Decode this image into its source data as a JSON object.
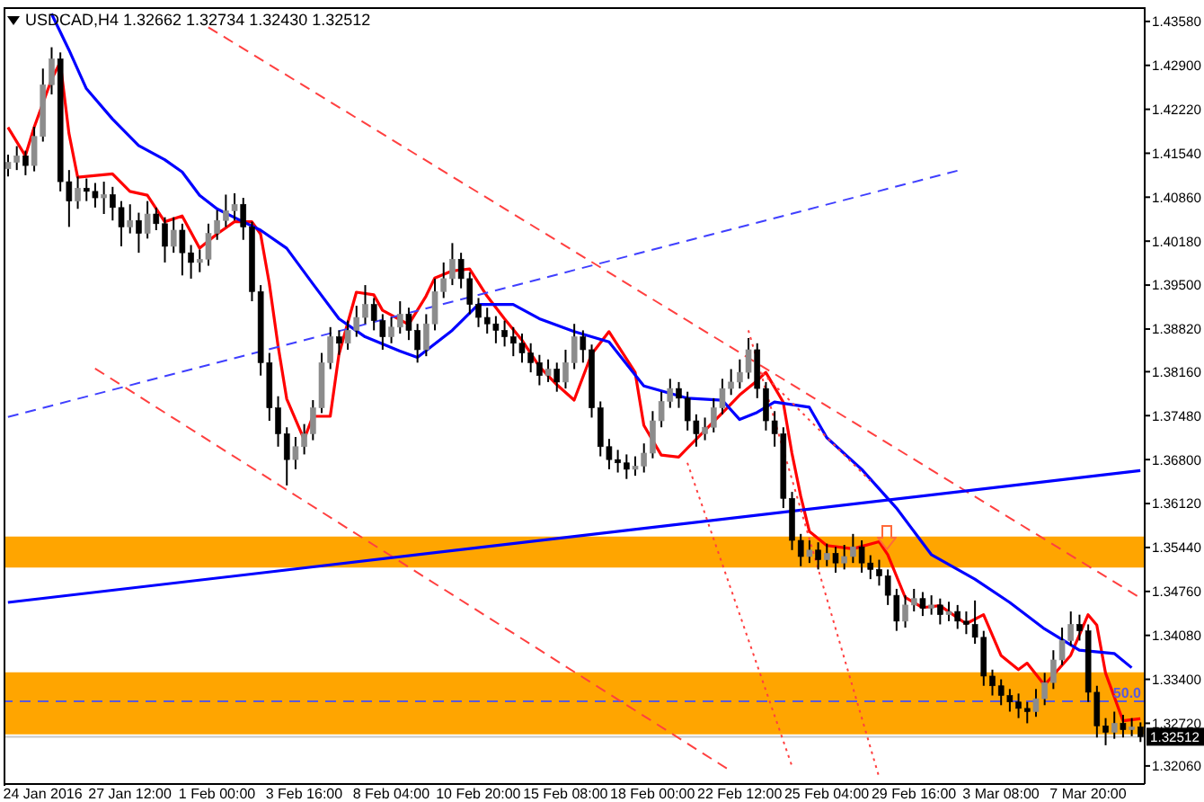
{
  "chart_data": {
    "type": "candlestick",
    "title": "USDCAD,H4 1.32662 1.32734 1.32430 1.32512",
    "categories": [
      null,
      null,
      null,
      null,
      "24 Jan 2016",
      null,
      null,
      null,
      null,
      null,
      null,
      null,
      null,
      null,
      "27 Jan 12:00",
      null,
      null,
      null,
      null,
      null,
      null,
      null,
      null,
      null,
      "1 Feb 00:00",
      null,
      null,
      null,
      null,
      null,
      null,
      null,
      null,
      null,
      "3 Feb 16:00",
      null,
      null,
      null,
      null,
      null,
      null,
      null,
      null,
      null,
      "8 Feb 04:00",
      null,
      null,
      null,
      null,
      null,
      null,
      null,
      null,
      null,
      "10 Feb 20:00",
      null,
      null,
      null,
      null,
      null,
      null,
      null,
      null,
      null,
      "15 Feb 08:00",
      null,
      null,
      null,
      null,
      null,
      null,
      null,
      null,
      null,
      "18 Feb 00:00",
      null,
      null,
      null,
      null,
      null,
      null,
      null,
      null,
      null,
      "22 Feb 12:00",
      null,
      null,
      null,
      null,
      null,
      null,
      null,
      null,
      null,
      "25 Feb 04:00",
      null,
      null,
      null,
      null,
      null,
      null,
      null,
      null,
      null,
      "29 Feb 16:00",
      null,
      null,
      null,
      null,
      null,
      null,
      null,
      null,
      null,
      "3 Mar 08:00",
      null,
      null,
      null,
      null,
      null,
      null,
      null,
      null,
      null,
      "7 Mar 20:00",
      null,
      null,
      null,
      null,
      null,
      null
    ],
    "ohlc": [
      [
        1.413,
        1.4152,
        1.4118,
        1.414
      ],
      [
        1.414,
        1.4165,
        1.4128,
        1.415
      ],
      [
        1.415,
        1.4158,
        1.412,
        1.4135
      ],
      [
        1.4135,
        1.4195,
        1.4126,
        1.418
      ],
      [
        1.418,
        1.4285,
        1.4172,
        1.426
      ],
      [
        1.426,
        1.4318,
        1.4245,
        1.43
      ],
      [
        1.43,
        1.431,
        1.4095,
        1.411
      ],
      [
        1.411,
        1.4128,
        1.404,
        1.408
      ],
      [
        1.408,
        1.4118,
        1.4068,
        1.41
      ],
      [
        1.41,
        1.4115,
        1.408,
        1.4095
      ],
      [
        1.4095,
        1.4108,
        1.407,
        1.4085
      ],
      [
        1.4085,
        1.411,
        1.406,
        1.409
      ],
      [
        1.409,
        1.4102,
        1.405,
        1.407
      ],
      [
        1.407,
        1.408,
        1.401,
        1.404
      ],
      [
        1.404,
        1.4075,
        1.403,
        1.405
      ],
      [
        1.405,
        1.4062,
        1.4,
        1.403
      ],
      [
        1.403,
        1.408,
        1.4022,
        1.406
      ],
      [
        1.406,
        1.407,
        1.4035,
        1.4045
      ],
      [
        1.4045,
        1.4055,
        1.3985,
        1.401
      ],
      [
        1.401,
        1.4055,
        1.4,
        1.4035
      ],
      [
        1.4035,
        1.4045,
        1.3965,
        1.4
      ],
      [
        1.4,
        1.4012,
        1.396,
        1.3985
      ],
      [
        1.3985,
        1.4005,
        1.397,
        1.399
      ],
      [
        1.399,
        1.4045,
        1.398,
        1.403
      ],
      [
        1.403,
        1.4066,
        1.402,
        1.405
      ],
      [
        1.405,
        1.409,
        1.404,
        1.4065
      ],
      [
        1.4065,
        1.4092,
        1.405,
        1.4075
      ],
      [
        1.4075,
        1.4085,
        1.402,
        1.404
      ],
      [
        1.404,
        1.4048,
        1.3925,
        1.394
      ],
      [
        1.394,
        1.395,
        1.381,
        1.383
      ],
      [
        1.383,
        1.3845,
        1.374,
        1.376
      ],
      [
        1.376,
        1.3778,
        1.37,
        1.372
      ],
      [
        1.372,
        1.373,
        1.364,
        1.368
      ],
      [
        1.368,
        1.3715,
        1.3665,
        1.37
      ],
      [
        1.37,
        1.3735,
        1.3688,
        1.372
      ],
      [
        1.372,
        1.3772,
        1.371,
        1.376
      ],
      [
        1.376,
        1.3845,
        1.3752,
        1.383
      ],
      [
        1.383,
        1.3885,
        1.382,
        1.387
      ],
      [
        1.387,
        1.388,
        1.3842,
        1.386
      ],
      [
        1.386,
        1.3895,
        1.385,
        1.388
      ],
      [
        1.388,
        1.3918,
        1.387,
        1.39
      ],
      [
        1.39,
        1.395,
        1.389,
        1.392
      ],
      [
        1.392,
        1.393,
        1.388,
        1.3895
      ],
      [
        1.3895,
        1.3905,
        1.385,
        1.387
      ],
      [
        1.387,
        1.39,
        1.386,
        1.3885
      ],
      [
        1.3885,
        1.3925,
        1.3875,
        1.3905
      ],
      [
        1.3905,
        1.3915,
        1.3865,
        1.388
      ],
      [
        1.388,
        1.389,
        1.383,
        1.385
      ],
      [
        1.385,
        1.3905,
        1.384,
        1.389
      ],
      [
        1.389,
        1.396,
        1.388,
        1.394
      ],
      [
        1.394,
        1.3985,
        1.393,
        1.396
      ],
      [
        1.396,
        1.4015,
        1.395,
        1.399
      ],
      [
        1.399,
        1.4,
        1.3945,
        1.396
      ],
      [
        1.396,
        1.397,
        1.3905,
        1.392
      ],
      [
        1.392,
        1.393,
        1.3885,
        1.39
      ],
      [
        1.39,
        1.3915,
        1.3875,
        1.389
      ],
      [
        1.389,
        1.3902,
        1.386,
        1.388
      ],
      [
        1.388,
        1.3895,
        1.3855,
        1.387
      ],
      [
        1.387,
        1.3885,
        1.384,
        1.386
      ],
      [
        1.386,
        1.3875,
        1.383,
        1.3845
      ],
      [
        1.3845,
        1.386,
        1.3815,
        1.383
      ],
      [
        1.383,
        1.3842,
        1.3795,
        1.381
      ],
      [
        1.381,
        1.3835,
        1.38,
        1.382
      ],
      [
        1.382,
        1.383,
        1.3785,
        1.38
      ],
      [
        1.38,
        1.385,
        1.379,
        1.383
      ],
      [
        1.383,
        1.389,
        1.382,
        1.387
      ],
      [
        1.387,
        1.388,
        1.383,
        1.385
      ],
      [
        1.385,
        1.3858,
        1.3745,
        1.376
      ],
      [
        1.376,
        1.377,
        1.3685,
        1.37
      ],
      [
        1.37,
        1.3712,
        1.3665,
        1.368
      ],
      [
        1.368,
        1.3695,
        1.366,
        1.3675
      ],
      [
        1.3675,
        1.3688,
        1.365,
        1.3665
      ],
      [
        1.3665,
        1.3685,
        1.3655,
        1.367
      ],
      [
        1.367,
        1.3705,
        1.366,
        1.369
      ],
      [
        1.369,
        1.3755,
        1.3682,
        1.374
      ],
      [
        1.374,
        1.3785,
        1.373,
        1.377
      ],
      [
        1.377,
        1.3805,
        1.376,
        1.379
      ],
      [
        1.379,
        1.38,
        1.376,
        1.3775
      ],
      [
        1.3775,
        1.3785,
        1.3725,
        1.374
      ],
      [
        1.374,
        1.375,
        1.37,
        1.372
      ],
      [
        1.372,
        1.3745,
        1.371,
        1.373
      ],
      [
        1.373,
        1.3775,
        1.3722,
        1.376
      ],
      [
        1.376,
        1.3805,
        1.375,
        1.379
      ],
      [
        1.379,
        1.382,
        1.378,
        1.38
      ],
      [
        1.38,
        1.3835,
        1.379,
        1.3815
      ],
      [
        1.3815,
        1.3868,
        1.3805,
        1.385
      ],
      [
        1.385,
        1.386,
        1.3775,
        1.379
      ],
      [
        1.379,
        1.38,
        1.3725,
        1.374
      ],
      [
        1.374,
        1.3755,
        1.37,
        1.372
      ],
      [
        1.372,
        1.373,
        1.3605,
        1.362
      ],
      [
        1.362,
        1.363,
        1.354,
        1.3555
      ],
      [
        1.3555,
        1.3565,
        1.3515,
        1.353
      ],
      [
        1.353,
        1.3555,
        1.352,
        1.354
      ],
      [
        1.354,
        1.3552,
        1.351,
        1.3525
      ],
      [
        1.3525,
        1.355,
        1.3515,
        1.3535
      ],
      [
        1.3535,
        1.3545,
        1.3505,
        1.352
      ],
      [
        1.352,
        1.3548,
        1.351,
        1.353
      ],
      [
        1.353,
        1.3565,
        1.352,
        1.3545
      ],
      [
        1.3545,
        1.3555,
        1.3505,
        1.352
      ],
      [
        1.352,
        1.3532,
        1.3495,
        1.351
      ],
      [
        1.351,
        1.3525,
        1.3485,
        1.35
      ],
      [
        1.35,
        1.351,
        1.3455,
        1.347
      ],
      [
        1.347,
        1.348,
        1.3415,
        1.343
      ],
      [
        1.343,
        1.347,
        1.342,
        1.3455
      ],
      [
        1.3455,
        1.348,
        1.3445,
        1.3465
      ],
      [
        1.3465,
        1.3475,
        1.3438,
        1.345
      ],
      [
        1.345,
        1.347,
        1.344,
        1.3455
      ],
      [
        1.3455,
        1.3465,
        1.3425,
        1.344
      ],
      [
        1.344,
        1.346,
        1.343,
        1.3445
      ],
      [
        1.3445,
        1.3455,
        1.3418,
        1.343
      ],
      [
        1.343,
        1.3445,
        1.341,
        1.3425
      ],
      [
        1.3425,
        1.3462,
        1.3395,
        1.3405
      ],
      [
        1.3405,
        1.3415,
        1.333,
        1.3345
      ],
      [
        1.3345,
        1.3355,
        1.3315,
        1.333
      ],
      [
        1.333,
        1.334,
        1.33,
        1.3315
      ],
      [
        1.3315,
        1.3325,
        1.329,
        1.3305
      ],
      [
        1.3305,
        1.3318,
        1.328,
        1.3295
      ],
      [
        1.3295,
        1.3305,
        1.3272,
        1.329
      ],
      [
        1.329,
        1.3325,
        1.3282,
        1.331
      ],
      [
        1.331,
        1.335,
        1.33,
        1.3335
      ],
      [
        1.3335,
        1.3385,
        1.3325,
        1.337
      ],
      [
        1.337,
        1.342,
        1.3362,
        1.34
      ],
      [
        1.34,
        1.3445,
        1.3392,
        1.3425
      ],
      [
        1.3425,
        1.344,
        1.34,
        1.3415
      ],
      [
        1.3415,
        1.3425,
        1.3305,
        1.332
      ],
      [
        1.332,
        1.333,
        1.325,
        1.3268
      ],
      [
        1.3268,
        1.328,
        1.3238,
        1.3258
      ],
      [
        1.3258,
        1.329,
        1.3248,
        1.3272
      ],
      [
        1.3272,
        1.3285,
        1.325,
        1.3262
      ],
      [
        1.3262,
        1.328,
        1.3252,
        1.32662
      ],
      [
        1.32662,
        1.32734,
        1.3243,
        1.32512
      ]
    ],
    "colors": [
      "#8c8c8c",
      "#8c8c8c",
      "#000000",
      "#8c8c8c",
      "#8c8c8c",
      "#8c8c8c",
      "#000000",
      "#000000",
      "#8c8c8c",
      "#000000",
      "#000000",
      "#8c8c8c",
      "#000000",
      "#000000",
      "#8c8c8c",
      "#000000",
      "#8c8c8c",
      "#000000",
      "#000000",
      "#8c8c8c",
      "#000000",
      "#000000",
      "#8c8c8c",
      "#8c8c8c",
      "#8c8c8c",
      "#8c8c8c",
      "#8c8c8c",
      "#000000",
      "#000000",
      "#000000",
      "#000000",
      "#000000",
      "#000000",
      "#8c8c8c",
      "#8c8c8c",
      "#8c8c8c",
      "#8c8c8c",
      "#8c8c8c",
      "#000000",
      "#8c8c8c",
      "#8c8c8c",
      "#8c8c8c",
      "#000000",
      "#000000",
      "#8c8c8c",
      "#8c8c8c",
      "#000000",
      "#000000",
      "#8c8c8c",
      "#8c8c8c",
      "#8c8c8c",
      "#8c8c8c",
      "#000000",
      "#000000",
      "#000000",
      "#000000",
      "#000000",
      "#000000",
      "#000000",
      "#000000",
      "#000000",
      "#000000",
      "#8c8c8c",
      "#000000",
      "#8c8c8c",
      "#8c8c8c",
      "#000000",
      "#000000",
      "#000000",
      "#000000",
      "#000000",
      "#000000",
      "#8c8c8c",
      "#8c8c8c",
      "#8c8c8c",
      "#8c8c8c",
      "#8c8c8c",
      "#000000",
      "#000000",
      "#000000",
      "#8c8c8c",
      "#8c8c8c",
      "#8c8c8c",
      "#8c8c8c",
      "#8c8c8c",
      "#8c8c8c",
      "#000000",
      "#000000",
      "#000000",
      "#000000",
      "#000000",
      "#000000",
      "#8c8c8c",
      "#000000",
      "#8c8c8c",
      "#000000",
      "#8c8c8c",
      "#8c8c8c",
      "#000000",
      "#000000",
      "#000000",
      "#000000",
      "#000000",
      "#8c8c8c",
      "#8c8c8c",
      "#000000",
      "#8c8c8c",
      "#000000",
      "#8c8c8c",
      "#000000",
      "#000000",
      "#000000",
      "#000000",
      "#000000",
      "#000000",
      "#000000",
      "#000000",
      "#000000",
      "#8c8c8c",
      "#8c8c8c",
      "#8c8c8c",
      "#8c8c8c",
      "#8c8c8c",
      "#000000",
      "#000000",
      "#000000",
      "#000000",
      "#8c8c8c",
      "#000000",
      "#8c8c8c",
      "#000000"
    ],
    "series": [
      {
        "type": "line",
        "color": "#ff0000",
        "line_style": "solid",
        "values": [
          1.4194,
          null,
          1.415,
          1.4194,
          null,
          1.4268,
          1.4295,
          1.4185,
          1.4117,
          null,
          null,
          null,
          1.4122,
          null,
          1.4095,
          null,
          1.4089,
          null,
          1.4048,
          null,
          1.4057,
          null,
          1.4007,
          null,
          1.4029,
          null,
          1.4048,
          null,
          1.4048,
          1.4029,
          1.3953,
          1.3857,
          1.3774,
          null,
          1.3711,
          1.3747,
          null,
          1.3747,
          1.3843,
          null,
          1.3939,
          null,
          1.3935,
          1.3911,
          null,
          null,
          1.3889,
          null,
          1.3933,
          1.3961,
          null,
          1.3972,
          null,
          1.3975,
          null,
          1.3933,
          null,
          1.3898,
          null,
          1.3865,
          null,
          1.3824,
          null,
          1.3796,
          null,
          1.3772,
          null,
          1.3843,
          null,
          1.3878,
          null,
          null,
          1.3815,
          1.3733,
          null,
          1.3687,
          null,
          1.3684,
          null,
          null,
          1.3725,
          null,
          1.3752,
          null,
          1.378,
          null,
          1.3802,
          1.3815,
          null,
          1.3769,
          1.369,
          1.3624,
          1.3569,
          null,
          1.3547,
          null,
          null,
          1.3542,
          null,
          null,
          1.3553,
          1.3533,
          null,
          1.3467,
          null,
          1.3451,
          null,
          1.3454,
          null,
          null,
          1.3426,
          null,
          1.344,
          null,
          1.3377,
          null,
          1.3355,
          1.3365,
          null,
          1.3331,
          null,
          null,
          1.3377,
          null,
          1.344,
          1.3424,
          1.335,
          null,
          1.3276,
          null,
          1.3279
        ]
      },
      {
        "type": "line",
        "color": "#0000ff",
        "line_style": "solid",
        "values": [
          null,
          null,
          null,
          null,
          null,
          1.437,
          null,
          1.4314,
          null,
          1.4254,
          null,
          null,
          1.4207,
          null,
          null,
          1.4166,
          null,
          null,
          1.4144,
          null,
          1.4125,
          null,
          1.4089,
          null,
          1.4068,
          null,
          null,
          1.4048,
          null,
          1.4035,
          null,
          null,
          1.4007,
          null,
          null,
          1.3952,
          null,
          null,
          1.3898,
          null,
          null,
          1.387,
          null,
          null,
          null,
          1.3848,
          null,
          1.3838,
          null,
          null,
          null,
          1.388,
          null,
          null,
          1.392,
          null,
          null,
          null,
          1.392,
          null,
          null,
          1.3898,
          null,
          null,
          null,
          1.3878,
          null,
          null,
          null,
          1.3862,
          null,
          null,
          null,
          1.3794,
          null,
          null,
          null,
          null,
          1.3775,
          null,
          null,
          null,
          1.3772,
          null,
          1.3742,
          null,
          1.3753,
          null,
          1.3769,
          null,
          null,
          null,
          1.3761,
          null,
          1.3714,
          null,
          null,
          null,
          1.3665,
          null,
          null,
          null,
          1.3605,
          null,
          null,
          null,
          1.3533,
          null,
          null,
          null,
          null,
          1.3495,
          null,
          null,
          null,
          1.3459,
          null,
          null,
          null,
          1.3418,
          null,
          null,
          null,
          1.3385,
          null,
          null,
          null,
          1.338,
          null,
          1.3358,
          null
        ]
      },
      {
        "type": "line",
        "color": "#ff4040",
        "line_style": "dashed",
        "values": [
          null,
          null,
          null,
          null,
          null,
          null,
          null,
          null,
          null,
          null,
          null,
          null,
          null,
          null,
          null,
          null,
          null,
          null,
          null,
          null,
          null,
          null,
          null,
          1.4349,
          null,
          null,
          null,
          null,
          null,
          null,
          null,
          null,
          null,
          null,
          null,
          null,
          null,
          null,
          null,
          null,
          null,
          null,
          null,
          null,
          null,
          null,
          null,
          null,
          null,
          null,
          null,
          null,
          null,
          null,
          null,
          null,
          null,
          null,
          null,
          null,
          null,
          null,
          null,
          null,
          null,
          null,
          null,
          null,
          null,
          null,
          null,
          null,
          null,
          null,
          null,
          null,
          null,
          null,
          null,
          null,
          null,
          null,
          null,
          null,
          null,
          null,
          null,
          null,
          null,
          null,
          null,
          null,
          null,
          null,
          null,
          null,
          null,
          null,
          null,
          null,
          null,
          null,
          null,
          null,
          null,
          null,
          null,
          null,
          null,
          null,
          null,
          null,
          null,
          null,
          null,
          null,
          null,
          null,
          null,
          null,
          null,
          null,
          null,
          null,
          null,
          null,
          null,
          null,
          null,
          null,
          1.3466
        ]
      },
      {
        "type": "line",
        "color": "#ff4040",
        "line_style": "dashed",
        "values": [
          null,
          null,
          null,
          null,
          null,
          null,
          null,
          null,
          null,
          null,
          1.3821,
          null,
          null,
          null,
          null,
          null,
          null,
          null,
          null,
          null,
          null,
          null,
          null,
          null,
          null,
          null,
          null,
          null,
          null,
          null,
          null,
          null,
          null,
          null,
          null,
          null,
          null,
          null,
          null,
          null,
          null,
          null,
          null,
          null,
          null,
          null,
          null,
          null,
          null,
          null,
          null,
          null,
          null,
          null,
          null,
          null,
          null,
          null,
          null,
          null,
          null,
          null,
          null,
          null,
          null,
          null,
          null,
          null,
          null,
          null,
          null,
          null,
          null,
          null,
          null,
          null,
          null,
          null,
          null,
          null,
          null,
          null,
          null,
          1.3198,
          null,
          null,
          null,
          null,
          null,
          null,
          null,
          null,
          null,
          null,
          null,
          null,
          null,
          null,
          null,
          null,
          null,
          null,
          null,
          null,
          null,
          null,
          null,
          null,
          null,
          null,
          null,
          null,
          null,
          null,
          null,
          null,
          null,
          null,
          null,
          null,
          null,
          null,
          null,
          null,
          null,
          null,
          null,
          null,
          null,
          null,
          null
        ]
      },
      {
        "type": "line",
        "color": "#3f3fff",
        "line_style": "dashed",
        "values": [
          1.3746,
          null,
          null,
          null,
          null,
          null,
          null,
          null,
          null,
          null,
          null,
          null,
          null,
          null,
          null,
          null,
          null,
          null,
          null,
          null,
          null,
          null,
          null,
          null,
          null,
          null,
          null,
          null,
          null,
          null,
          null,
          null,
          null,
          null,
          null,
          null,
          null,
          null,
          null,
          null,
          null,
          null,
          null,
          null,
          null,
          null,
          null,
          null,
          null,
          null,
          null,
          null,
          null,
          null,
          null,
          null,
          null,
          null,
          null,
          null,
          null,
          null,
          null,
          null,
          null,
          null,
          null,
          null,
          null,
          null,
          null,
          null,
          null,
          null,
          null,
          null,
          null,
          null,
          null,
          null,
          null,
          null,
          null,
          null,
          null,
          null,
          null,
          null,
          null,
          null,
          null,
          null,
          null,
          null,
          null,
          null,
          null,
          null,
          null,
          null,
          null,
          null,
          null,
          null,
          null,
          null,
          null,
          null,
          null,
          1.4127,
          null,
          null,
          null,
          null,
          null,
          null,
          null,
          null,
          null,
          null,
          null,
          null,
          null,
          null,
          null,
          null,
          null,
          null,
          null,
          null,
          null
        ]
      },
      {
        "type": "line",
        "color": "#0000ff",
        "line_style": "solid",
        "values": [
          1.3459,
          null,
          null,
          null,
          null,
          null,
          null,
          null,
          null,
          null,
          null,
          null,
          null,
          null,
          null,
          null,
          null,
          null,
          null,
          null,
          null,
          null,
          null,
          null,
          null,
          null,
          null,
          null,
          null,
          null,
          null,
          null,
          null,
          null,
          null,
          null,
          null,
          null,
          null,
          null,
          null,
          null,
          null,
          null,
          null,
          null,
          null,
          null,
          null,
          null,
          null,
          null,
          null,
          null,
          null,
          null,
          null,
          null,
          null,
          null,
          null,
          null,
          null,
          null,
          null,
          null,
          null,
          null,
          null,
          null,
          null,
          null,
          null,
          null,
          null,
          null,
          null,
          null,
          null,
          null,
          null,
          null,
          null,
          null,
          null,
          null,
          null,
          null,
          null,
          null,
          null,
          null,
          null,
          null,
          null,
          null,
          null,
          null,
          null,
          null,
          null,
          null,
          null,
          null,
          null,
          null,
          null,
          null,
          null,
          null,
          null,
          null,
          null,
          null,
          null,
          null,
          null,
          null,
          null,
          null,
          null,
          null,
          null,
          null,
          null,
          null,
          null,
          null,
          null,
          null,
          1.3663
        ]
      },
      {
        "type": "line",
        "color": "#ff4040",
        "line_style": "dotted",
        "values": [
          null,
          null,
          null,
          null,
          null,
          null,
          null,
          null,
          null,
          null,
          null,
          null,
          null,
          null,
          null,
          null,
          null,
          null,
          null,
          null,
          null,
          null,
          null,
          null,
          null,
          null,
          null,
          null,
          null,
          null,
          null,
          null,
          null,
          null,
          null,
          null,
          null,
          null,
          null,
          null,
          null,
          null,
          null,
          null,
          null,
          null,
          null,
          null,
          null,
          null,
          null,
          null,
          null,
          null,
          null,
          null,
          null,
          null,
          null,
          null,
          null,
          null,
          null,
          null,
          null,
          null,
          null,
          null,
          null,
          null,
          null,
          null,
          null,
          null,
          null,
          null,
          null,
          null,
          1.3675,
          null,
          null,
          null,
          null,
          null,
          null,
          null,
          null,
          null,
          null,
          null,
          1.3206,
          null,
          null,
          null,
          null,
          null,
          null,
          null,
          null,
          null,
          null,
          null,
          null,
          null,
          null,
          null,
          null,
          null,
          null,
          null,
          null,
          null,
          null,
          null,
          null,
          null,
          null,
          null,
          null,
          null,
          null,
          null,
          null,
          null,
          null,
          null,
          null,
          null,
          null,
          null,
          null
        ]
      },
      {
        "type": "line",
        "color": "#ff4040",
        "line_style": "dotted",
        "values": [
          null,
          null,
          null,
          null,
          null,
          null,
          null,
          null,
          null,
          null,
          null,
          null,
          null,
          null,
          null,
          null,
          null,
          null,
          null,
          null,
          null,
          null,
          null,
          null,
          null,
          null,
          null,
          null,
          null,
          null,
          null,
          null,
          null,
          null,
          null,
          null,
          null,
          null,
          null,
          null,
          null,
          null,
          null,
          null,
          null,
          null,
          null,
          null,
          null,
          null,
          null,
          null,
          null,
          null,
          null,
          null,
          null,
          null,
          null,
          null,
          null,
          null,
          null,
          null,
          null,
          null,
          null,
          null,
          null,
          null,
          null,
          null,
          null,
          null,
          null,
          null,
          null,
          null,
          null,
          null,
          null,
          null,
          null,
          null,
          null,
          1.388,
          null,
          null,
          null,
          null,
          null,
          null,
          null,
          null,
          null,
          null,
          null,
          null,
          null,
          null,
          1.3189,
          null,
          null,
          null,
          null,
          null,
          null,
          null,
          null,
          null,
          null,
          null,
          null,
          null,
          null,
          null,
          null,
          null,
          null,
          null,
          null,
          null,
          null,
          null,
          null,
          null,
          null,
          null,
          null,
          null,
          null
        ]
      },
      {
        "type": "line",
        "color": "#ff4040",
        "line_style": "dotted",
        "values": [
          null,
          null,
          null,
          null,
          null,
          null,
          null,
          null,
          null,
          null,
          null,
          null,
          null,
          null,
          null,
          null,
          null,
          null,
          null,
          null,
          null,
          null,
          null,
          null,
          null,
          null,
          null,
          null,
          null,
          null,
          null,
          null,
          null,
          null,
          null,
          null,
          null,
          null,
          null,
          null,
          null,
          null,
          null,
          null,
          null,
          null,
          null,
          null,
          null,
          null,
          null,
          null,
          null,
          null,
          null,
          null,
          null,
          null,
          null,
          null,
          null,
          null,
          null,
          null,
          null,
          null,
          null,
          null,
          null,
          null,
          null,
          null,
          null,
          null,
          null,
          null,
          null,
          null,
          null,
          null,
          null,
          null,
          null,
          null,
          null,
          null,
          1.3822,
          null,
          null,
          null,
          null,
          null,
          null,
          null,
          null,
          null,
          null,
          null,
          null,
          1.3647,
          null,
          null,
          null,
          null,
          null,
          null,
          null,
          null,
          null,
          null,
          null,
          null,
          null,
          null,
          null,
          null,
          null,
          null,
          null,
          null,
          null,
          null,
          null,
          null,
          null,
          null,
          null,
          null,
          null,
          null,
          null
        ]
      }
    ],
    "bands": [
      {
        "axis": "y",
        "from": 1.3513,
        "to": 1.3561,
        "color": "#ffa500"
      },
      {
        "axis": "y",
        "from": 1.3255,
        "to": 1.3351,
        "color": "#ffa500"
      }
    ],
    "annotations": [
      {
        "text": "50.0",
        "y": 1.3306
      }
    ],
    "ref_lines": [
      {
        "axis": "y",
        "value": 1.3306,
        "color": "#5a5adc",
        "line_style": "dashed"
      },
      {
        "axis": "y",
        "value": 1.32512,
        "label": "1.32512",
        "color": "#c8c8c8",
        "line_style": "solid"
      }
    ],
    "ylim": [
      1.3178,
      1.438
    ],
    "yticks": [
      {
        "value": 1.3206,
        "label": "1.32060"
      },
      {
        "value": 1.3272,
        "label": "1.32720"
      },
      {
        "value": 1.334,
        "label": "1.33400"
      },
      {
        "value": 1.3408,
        "label": "1.34080"
      },
      {
        "value": 1.3476,
        "label": "1.34760"
      },
      {
        "value": 1.3544,
        "label": "1.35440"
      },
      {
        "value": 1.3612,
        "label": "1.36120"
      },
      {
        "value": 1.368,
        "label": "1.36800"
      },
      {
        "value": 1.3748,
        "label": "1.37480"
      },
      {
        "value": 1.3816,
        "label": "1.38160"
      },
      {
        "value": 1.3882,
        "label": "1.38820"
      },
      {
        "value": 1.395,
        "label": "1.39500"
      },
      {
        "value": 1.4018,
        "label": "1.40180"
      },
      {
        "value": 1.4086,
        "label": "1.40860"
      },
      {
        "value": 1.4154,
        "label": "1.41540"
      },
      {
        "value": 1.4222,
        "label": "1.42220"
      },
      {
        "value": 1.429,
        "label": "1.42900"
      },
      {
        "value": 1.4358,
        "label": "1.43580"
      }
    ]
  }
}
